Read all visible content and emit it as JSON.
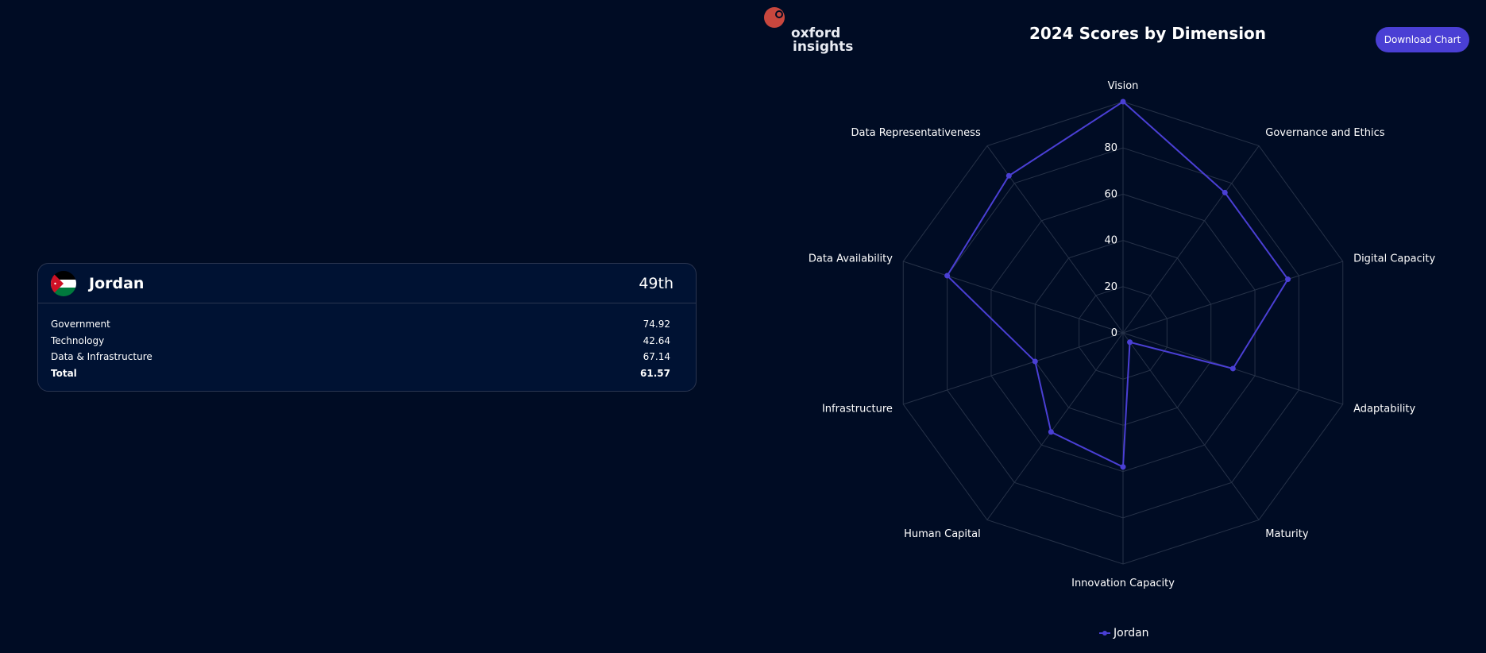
{
  "country_card": {
    "country": "Jordan",
    "rank": "49th",
    "flag_icon": "jordan-flag-icon",
    "rows": [
      {
        "label": "Government",
        "value": "74.92"
      },
      {
        "label": "Technology",
        "value": "42.64"
      },
      {
        "label": "Data & Infrastructure",
        "value": "67.14"
      },
      {
        "label": "Total",
        "value": "61.57"
      }
    ]
  },
  "header": {
    "logo_text_line1": "oxford",
    "logo_text_line2": "insights",
    "download_label": "Download Chart"
  },
  "colors": {
    "background": "#000c24",
    "card": "#001233",
    "accent": "#4a3fd4",
    "logo": "#c8473e"
  },
  "chart_data": {
    "type": "radar",
    "title": "2024 Scores by Dimension",
    "categories": [
      "Vision",
      "Governance and Ethics",
      "Digital Capacity",
      "Adaptability",
      "Maturity",
      "Innovation Capacity",
      "Human Capital",
      "Infrastructure",
      "Data Availability",
      "Data Representativeness"
    ],
    "axis_ticks": [
      0,
      20,
      40,
      60,
      80
    ],
    "rlim": [
      0,
      100
    ],
    "series": [
      {
        "name": "Jordan",
        "values": [
          100,
          75,
          75,
          50,
          5,
          58,
          53,
          40,
          80,
          84
        ]
      }
    ],
    "legend": "bottom",
    "grid": true
  }
}
